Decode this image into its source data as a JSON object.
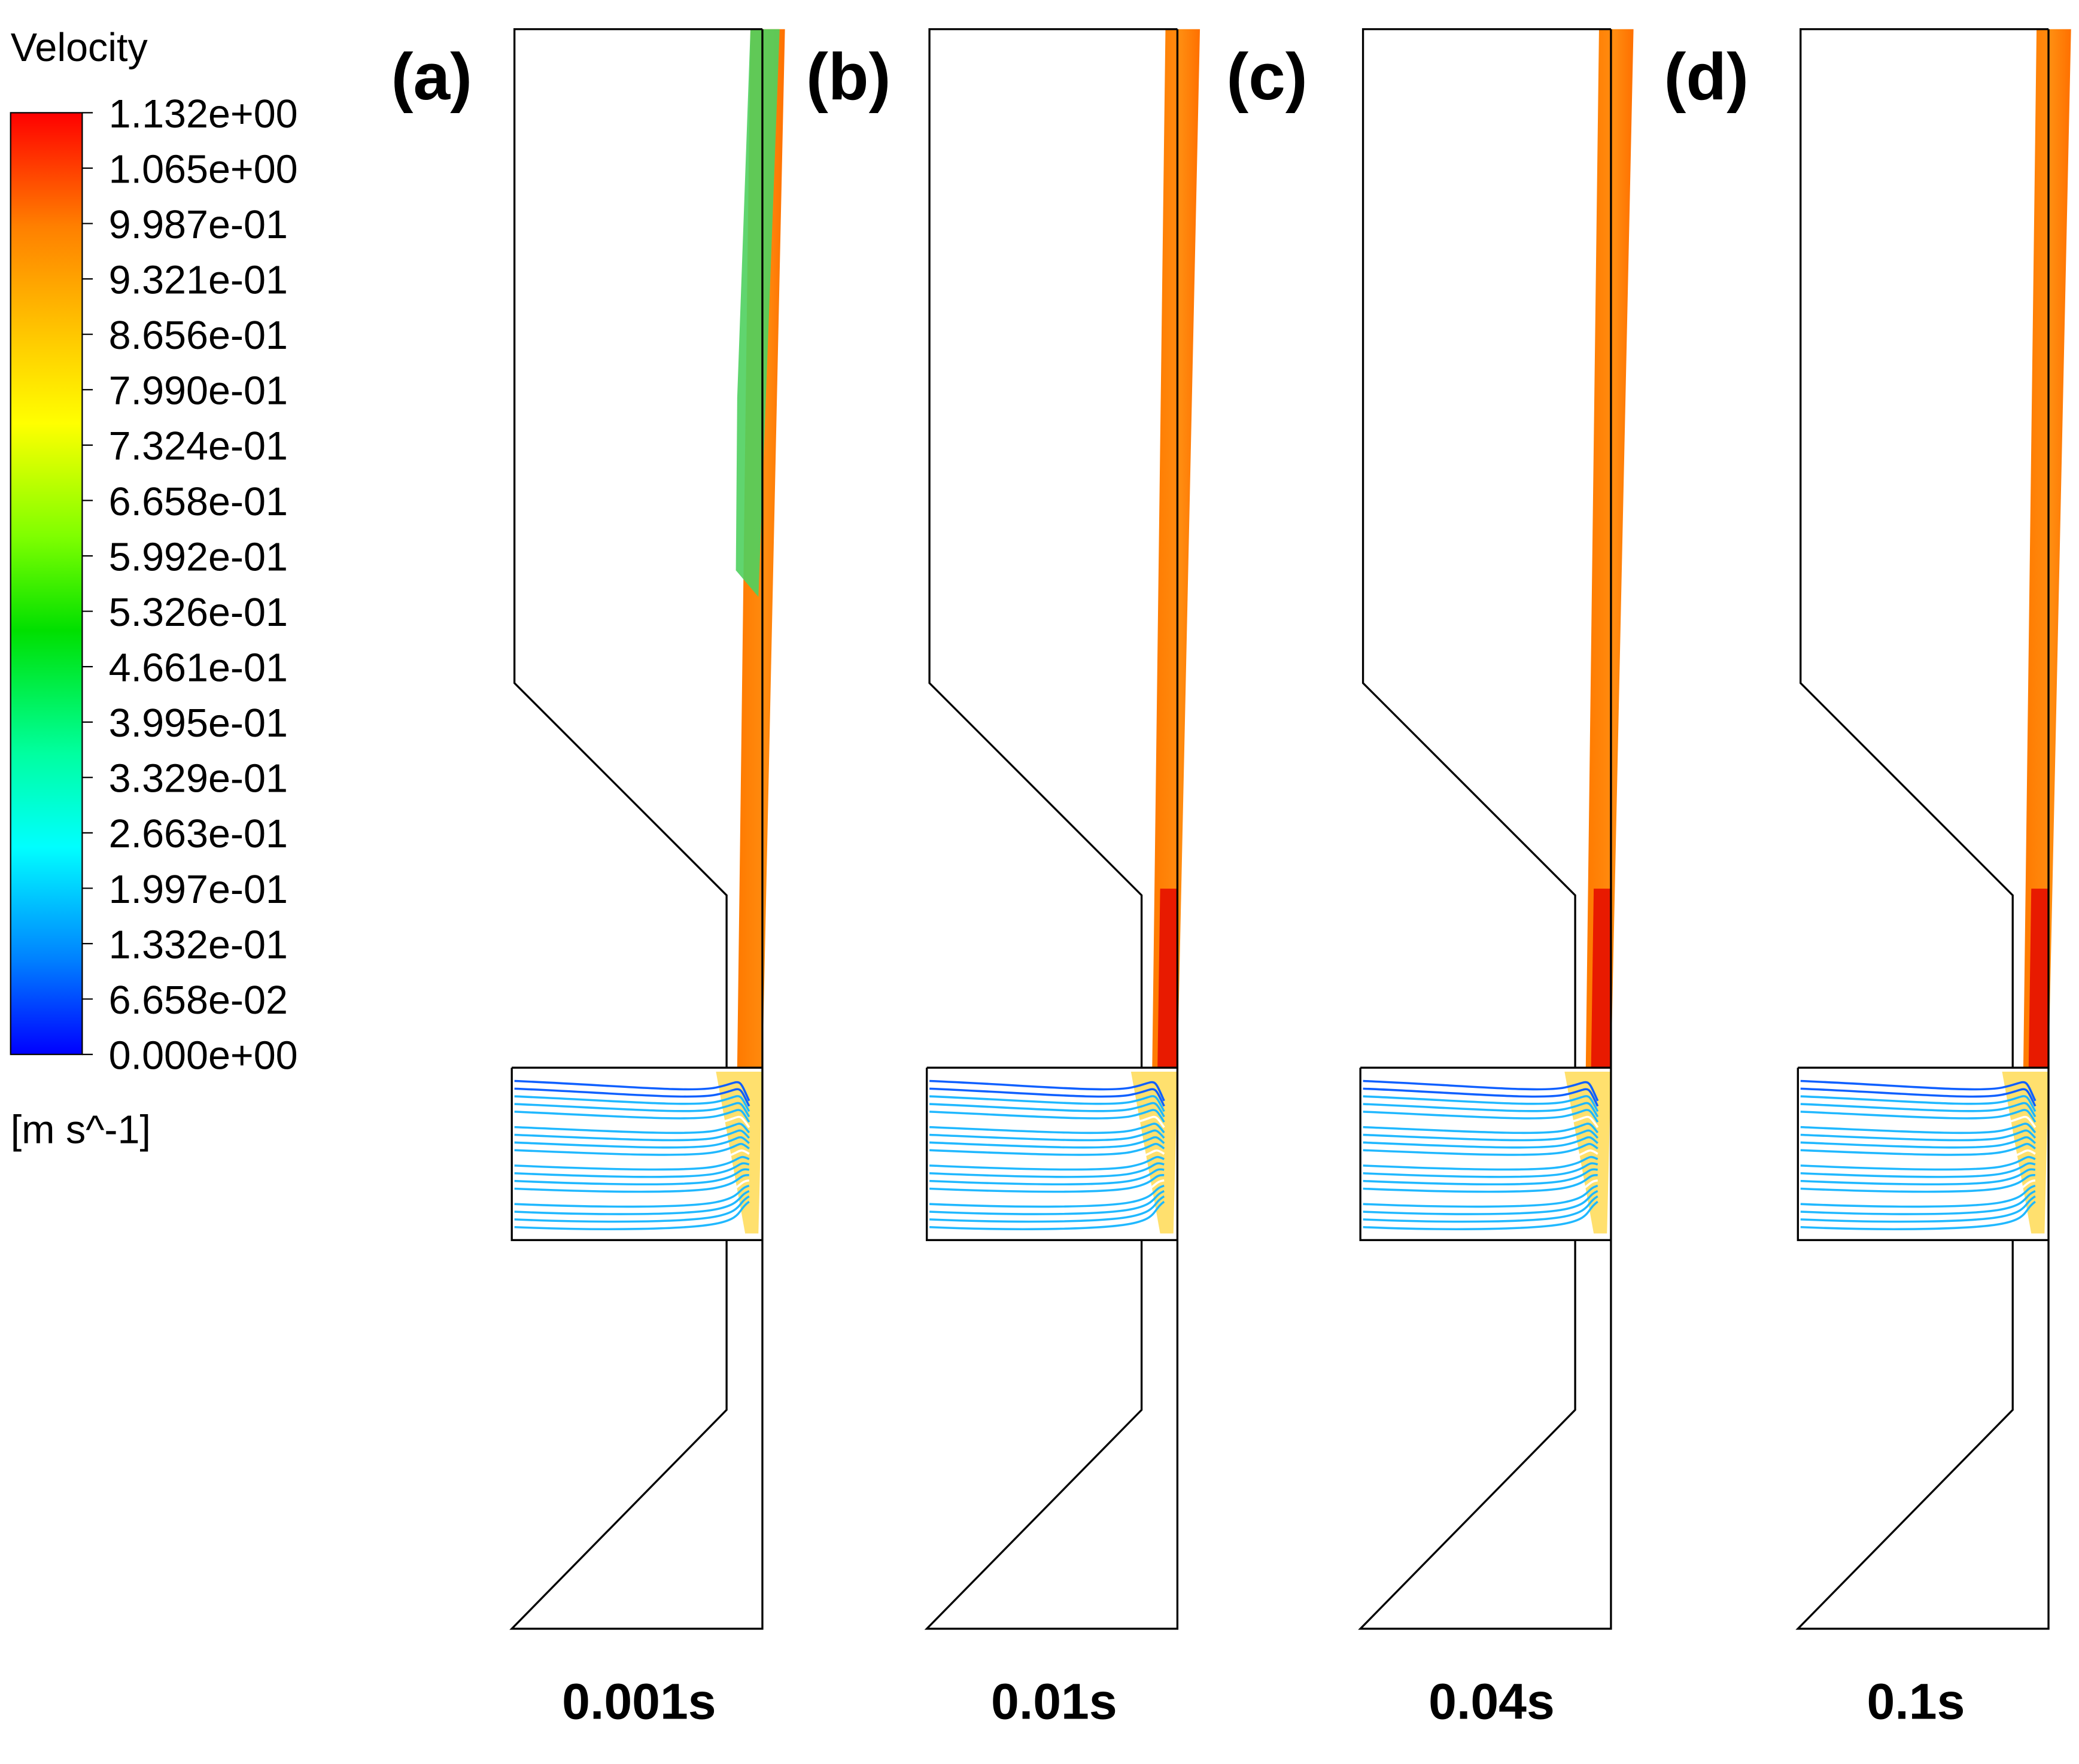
{
  "legend": {
    "title": "Velocity",
    "ticks": [
      "1.132e+00",
      "1.065e+00",
      "9.987e-01",
      "9.321e-01",
      "8.656e-01",
      "7.990e-01",
      "7.324e-01",
      "6.658e-01",
      "5.992e-01",
      "5.326e-01",
      "4.661e-01",
      "3.995e-01",
      "3.329e-01",
      "2.663e-01",
      "1.997e-01",
      "1.332e-01",
      "6.658e-02",
      "0.000e+00"
    ],
    "unit": "[m s^-1]"
  },
  "panels": [
    {
      "label": "(a)",
      "time": "0.001s"
    },
    {
      "label": "(b)",
      "time": "0.01s"
    },
    {
      "label": "(c)",
      "time": "0.04s"
    },
    {
      "label": "(d)",
      "time": "0.1s"
    }
  ]
}
